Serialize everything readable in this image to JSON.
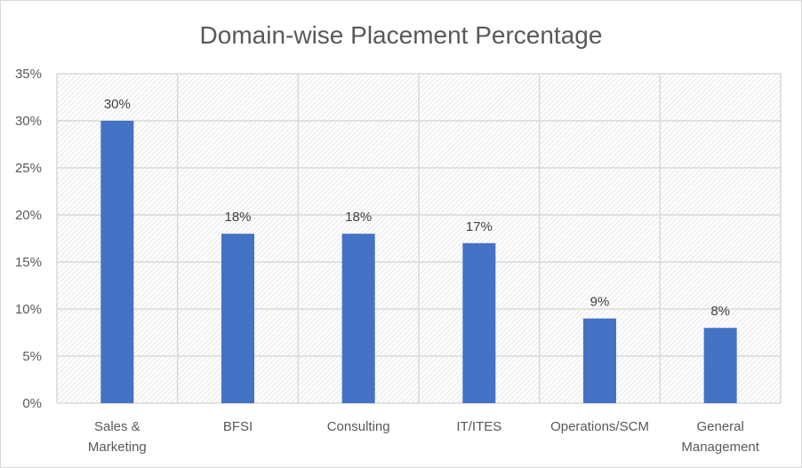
{
  "chart_data": {
    "type": "bar",
    "title": "Domain-wise Placement Percentage",
    "categories": [
      [
        "Sales &",
        "Marketing"
      ],
      [
        "BFSI"
      ],
      [
        "Consulting"
      ],
      [
        "IT/ITES"
      ],
      [
        "Operations/SCM"
      ],
      [
        "General",
        "Management"
      ]
    ],
    "values": [
      30,
      18,
      18,
      17,
      9,
      8
    ],
    "data_labels": [
      "30%",
      "18%",
      "18%",
      "17%",
      "9%",
      "8%"
    ],
    "ylim": [
      0,
      35
    ],
    "yticks": [
      "0%",
      "5%",
      "10%",
      "15%",
      "20%",
      "25%",
      "30%",
      "35%"
    ],
    "grid": true,
    "bar_color": "#4472c4",
    "plot_background": "diagonal hatch light gray"
  }
}
